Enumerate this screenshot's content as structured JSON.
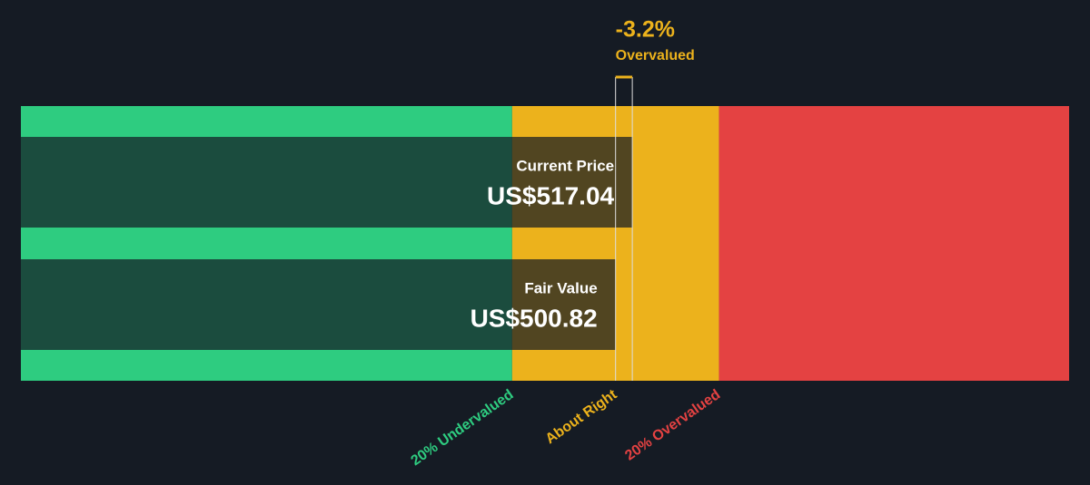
{
  "chart_data": {
    "type": "valuation-bar",
    "annotation_value": "-3.2%",
    "annotation_label": "Overvalued",
    "series": [
      {
        "name": "Current Price",
        "value": 517.04,
        "value_label": "US$517.04"
      },
      {
        "name": "Fair Value",
        "value": 500.82,
        "value_label": "US$500.82"
      }
    ],
    "zones": [
      {
        "label": "20% Undervalued",
        "end": 400.66,
        "color": "#2ecc80"
      },
      {
        "label": "About Right",
        "end": 600.98,
        "color": "#ecb21c"
      },
      {
        "label": "20% Overvalued",
        "color": "#e44242"
      }
    ],
    "xlim": [
      -75,
      940
    ]
  }
}
